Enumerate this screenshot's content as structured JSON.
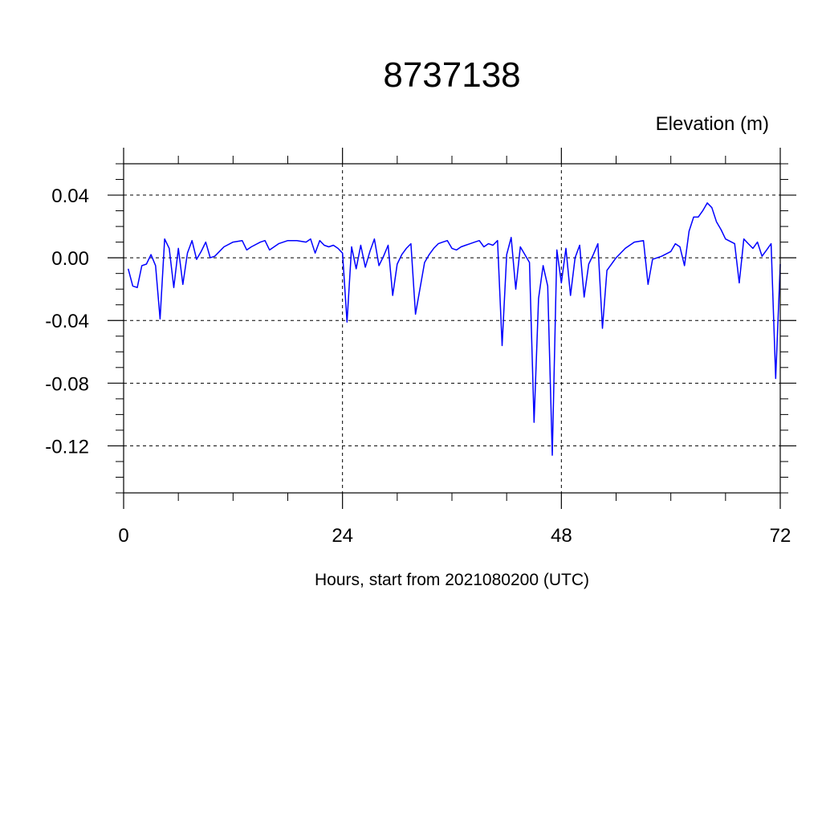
{
  "chart_data": {
    "type": "line",
    "title": "8737138",
    "unit_label": "Elevation (m)",
    "xlabel": "Hours, start from 2021080200 (UTC)",
    "ylabel": "",
    "xlim": [
      0,
      72
    ],
    "ylim": [
      -0.15,
      0.06
    ],
    "x_ticks": [
      0,
      24,
      48,
      72
    ],
    "x_tick_labels": [
      "0",
      "24",
      "48",
      "72"
    ],
    "x_minor_step": 6,
    "y_ticks": [
      0.04,
      0.0,
      -0.04,
      -0.08,
      -0.12
    ],
    "y_tick_labels": [
      "0.04",
      "0.00",
      "-0.04",
      "-0.08",
      "-0.12"
    ],
    "y_minor_step": 0.01,
    "grid": "dashed at major ticks",
    "line_color": "#0000ff",
    "series": [
      {
        "x": [
          0.5,
          1.0,
          1.5,
          2.0,
          2.5,
          3.0,
          3.5,
          4.0,
          4.5,
          5.0,
          5.5,
          6.0,
          6.5,
          7.0,
          7.5,
          8.0,
          8.5,
          9.0,
          9.5,
          10.0,
          10.5,
          11.0,
          12.0,
          13.0,
          13.5,
          14.0,
          15.0,
          15.5,
          16.0,
          17.0,
          18.0,
          19.0,
          20.0,
          20.5,
          21.0,
          21.5,
          22.0,
          22.5,
          23.0,
          23.5,
          24.0,
          24.5,
          25.0,
          25.5,
          26.0,
          26.5,
          27.0,
          27.5,
          28.0,
          28.5,
          29.0,
          29.5,
          30.0,
          30.5,
          31.0,
          31.5,
          32.0,
          33.0,
          33.5,
          34.0,
          34.5,
          35.0,
          35.5,
          36.0,
          36.5,
          37.0,
          37.5,
          38.0,
          38.5,
          39.0,
          39.5,
          40.0,
          40.5,
          41.0,
          41.5,
          42.0,
          42.5,
          43.0,
          43.5,
          44.0,
          44.5,
          45.0,
          45.5,
          46.0,
          46.5,
          47.0,
          47.5,
          48.0,
          48.5,
          49.0,
          49.5,
          50.0,
          50.5,
          51.0,
          51.5,
          52.0,
          52.5,
          53.0,
          54.0,
          55.0,
          56.0,
          57.0,
          57.5,
          58.0,
          59.0,
          60.0,
          60.5,
          61.0,
          61.5,
          62.0,
          62.5,
          63.0,
          63.5,
          64.0,
          64.5,
          65.0,
          65.5,
          66.0,
          67.0,
          67.5,
          68.0,
          68.5,
          69.0,
          69.5,
          70.0,
          70.5,
          71.0,
          71.5,
          72.0
        ],
        "y": [
          -0.007,
          -0.018,
          -0.019,
          -0.005,
          -0.004,
          0.002,
          -0.005,
          -0.039,
          0.012,
          0.006,
          -0.019,
          0.006,
          -0.017,
          0.003,
          0.011,
          -0.001,
          0.004,
          0.01,
          0.0,
          0.001,
          0.004,
          0.007,
          0.01,
          0.011,
          0.005,
          0.007,
          0.01,
          0.011,
          0.005,
          0.009,
          0.011,
          0.011,
          0.01,
          0.012,
          0.003,
          0.011,
          0.008,
          0.007,
          0.008,
          0.006,
          0.003,
          -0.041,
          0.007,
          -0.007,
          0.008,
          -0.006,
          0.004,
          0.012,
          -0.005,
          0.001,
          0.008,
          -0.024,
          -0.004,
          0.002,
          0.006,
          0.009,
          -0.036,
          -0.003,
          0.002,
          0.006,
          0.009,
          0.01,
          0.011,
          0.006,
          0.005,
          0.007,
          0.008,
          0.009,
          0.01,
          0.011,
          0.007,
          0.009,
          0.008,
          0.011,
          -0.056,
          0.002,
          0.013,
          -0.02,
          0.007,
          0.002,
          -0.003,
          -0.105,
          -0.026,
          -0.005,
          -0.018,
          -0.126,
          0.005,
          -0.016,
          0.006,
          -0.024,
          0.0,
          0.008,
          -0.025,
          -0.004,
          0.002,
          0.009,
          -0.045,
          -0.008,
          0.0,
          0.006,
          0.01,
          0.011,
          -0.017,
          -0.001,
          0.001,
          0.004,
          0.009,
          0.007,
          -0.005,
          0.017,
          0.026,
          0.026,
          0.03,
          0.035,
          0.032,
          0.023,
          0.018,
          0.012,
          0.009,
          -0.016,
          0.012,
          0.009,
          0.006,
          0.01,
          0.001,
          0.005,
          0.009,
          -0.077,
          -0.004
        ]
      }
    ]
  }
}
